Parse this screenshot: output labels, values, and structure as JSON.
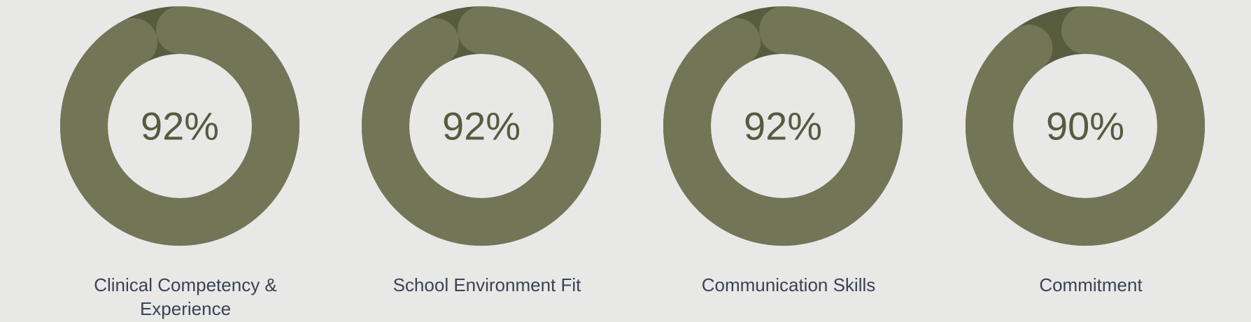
{
  "chart_data": [
    {
      "type": "donut",
      "title": "Clinical Competency & Experience",
      "values": [
        92
      ],
      "value_labels": [
        "92%"
      ],
      "color": "#727657",
      "track_color": "#585c3f"
    },
    {
      "type": "donut",
      "title": "School Environment Fit",
      "values": [
        92
      ],
      "value_labels": [
        "92%"
      ],
      "color": "#727657",
      "track_color": "#585c3f"
    },
    {
      "type": "donut",
      "title": "Communication Skills",
      "values": [
        92
      ],
      "value_labels": [
        "92%"
      ],
      "color": "#727657",
      "track_color": "#585c3f"
    },
    {
      "type": "donut",
      "title": "Commitment",
      "values": [
        90
      ],
      "value_labels": [
        "90%"
      ],
      "color": "#727657",
      "track_color": "#585c3f"
    }
  ]
}
